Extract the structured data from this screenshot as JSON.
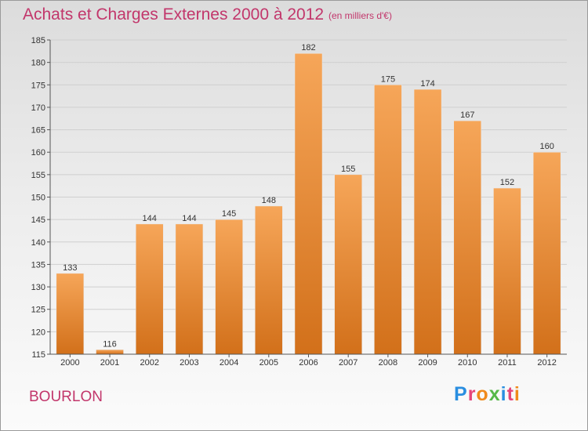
{
  "header": {
    "title": "Achats et Charges Externes 2000 à 2012",
    "subtitle": "(en milliers d'€)"
  },
  "footer": {
    "place": "BOURLON",
    "logo_letters": [
      "P",
      "r",
      "o",
      "x",
      "i",
      "t",
      "i"
    ],
    "logo_colors": [
      "#2a8ee0",
      "#e6457a",
      "#f08a1c",
      "#56b848",
      "#2a8ee0",
      "#e6457a",
      "#f08a1c"
    ]
  },
  "colors": {
    "bar_top": "#f6a659",
    "bar_bottom": "#d2701a",
    "grid": "#cfcfcf",
    "axis": "#555555"
  },
  "chart_data": {
    "type": "bar",
    "title": "Achats et Charges Externes 2000 à 2012",
    "subtitle": "(en milliers d'€)",
    "xlabel": "",
    "ylabel": "",
    "categories": [
      "2000",
      "2001",
      "2002",
      "2003",
      "2004",
      "2005",
      "2006",
      "2007",
      "2008",
      "2009",
      "2010",
      "2011",
      "2012"
    ],
    "values": [
      133,
      116,
      144,
      144,
      145,
      148,
      182,
      155,
      175,
      174,
      167,
      152,
      160
    ],
    "ylim": [
      115,
      185
    ],
    "yticks": [
      115,
      120,
      125,
      130,
      135,
      140,
      145,
      150,
      155,
      160,
      165,
      170,
      175,
      180,
      185
    ],
    "grid": true,
    "legend": "none"
  }
}
